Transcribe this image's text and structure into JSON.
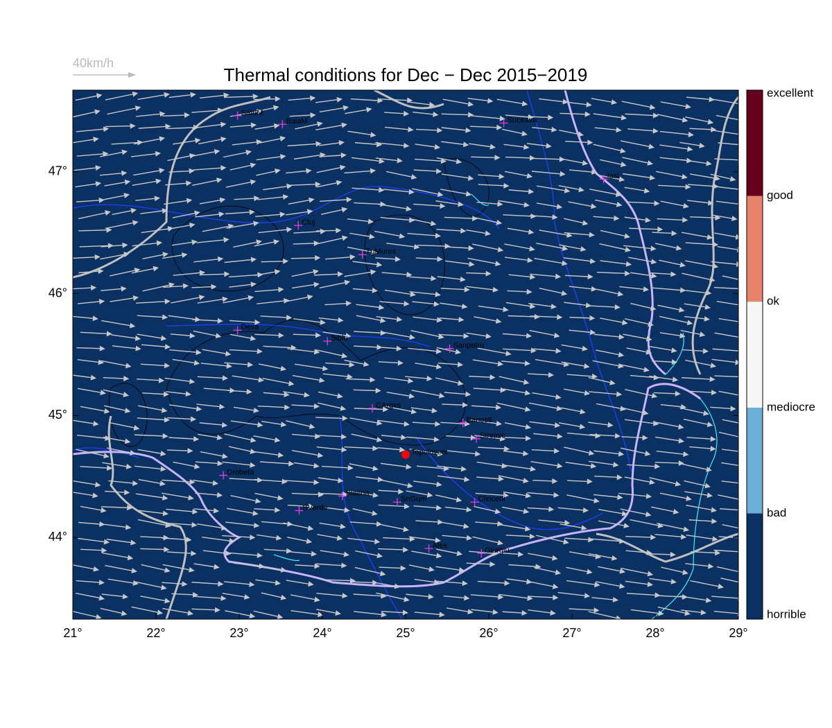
{
  "title": "Thermal conditions for Dec − Dec  2015−2019",
  "scale_label": "40km/h",
  "map": {
    "xlim": [
      21,
      29
    ],
    "ylim": [
      43.33,
      47.67
    ],
    "xticks": [
      {
        "value": 21,
        "label": "21°"
      },
      {
        "value": 22,
        "label": "22°"
      },
      {
        "value": 23,
        "label": "23°"
      },
      {
        "value": 24,
        "label": "24°"
      },
      {
        "value": 25,
        "label": "25°"
      },
      {
        "value": 26,
        "label": "26°"
      },
      {
        "value": 27,
        "label": "27°"
      },
      {
        "value": 28,
        "label": "28°"
      },
      {
        "value": 29,
        "label": "29°"
      }
    ],
    "yticks": [
      {
        "value": 44,
        "label": "44°"
      },
      {
        "value": 45,
        "label": "45°"
      },
      {
        "value": 46,
        "label": "46°"
      },
      {
        "value": 47,
        "label": "47°"
      }
    ],
    "background": "#0b3163",
    "cities": [
      {
        "name": "SatuM",
        "lon": 22.98,
        "lat": 47.46
      },
      {
        "name": "BaiaM",
        "lon": 23.52,
        "lat": 47.39
      },
      {
        "name": "Suceava",
        "lon": 26.18,
        "lat": 47.4
      },
      {
        "name": "Iasi",
        "lon": 27.38,
        "lat": 46.94
      },
      {
        "name": "Cluj",
        "lon": 23.71,
        "lat": 46.56
      },
      {
        "name": "TgMures",
        "lon": 24.48,
        "lat": 46.32
      },
      {
        "name": "Deva",
        "lon": 22.98,
        "lat": 45.7
      },
      {
        "name": "Sibiu",
        "lon": 24.06,
        "lat": 45.61
      },
      {
        "name": "Sanpetru",
        "lon": 25.53,
        "lat": 45.55
      },
      {
        "name": "CArges",
        "lon": 24.6,
        "lat": 45.06
      },
      {
        "name": "Banesti",
        "lon": 25.69,
        "lat": 44.94
      },
      {
        "name": "Strejnic",
        "lon": 25.85,
        "lat": 44.81
      },
      {
        "name": "Drobeta",
        "lon": 22.81,
        "lat": 44.51
      },
      {
        "name": "Slatina",
        "lon": 24.24,
        "lat": 44.34
      },
      {
        "name": "SnGum",
        "lon": 24.9,
        "lat": 44.29
      },
      {
        "name": "Clinceni",
        "lon": 25.83,
        "lat": 44.29
      },
      {
        "name": "BVerde",
        "lon": 23.72,
        "lat": 44.22
      },
      {
        "name": "Alex",
        "lon": 25.28,
        "lat": 43.91
      },
      {
        "name": "Giurgiu",
        "lon": 25.91,
        "lat": 43.87
      }
    ],
    "site": {
      "name": "Topoloveni",
      "lon": 25.0,
      "lat": 44.68,
      "color": "#ff0000"
    }
  },
  "colorbar": {
    "labels": [
      "horrible",
      "bad",
      "mediocre",
      "ok",
      "good",
      "excellent"
    ],
    "colors": [
      "#0b3163",
      "#6baed6",
      "#f7f7f7",
      "#e6836a",
      "#67001f"
    ]
  }
}
